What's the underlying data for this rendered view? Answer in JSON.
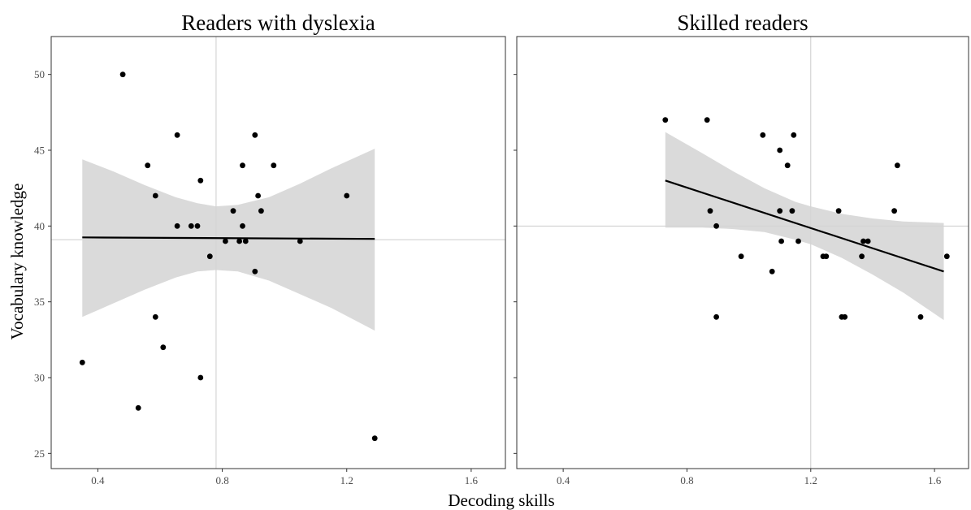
{
  "chart_data": {
    "type": "scatter",
    "xlabel": "Decoding skills",
    "ylabel": "Vocabulary knowledge",
    "xlim": [
      0.25,
      1.71
    ],
    "ylim": [
      24,
      52.5
    ],
    "xticks": [
      "0.4",
      "0.8",
      "1.2",
      "1.6"
    ],
    "yticks": [
      "25",
      "30",
      "35",
      "40",
      "45",
      "50"
    ],
    "grid": false,
    "legend": "none",
    "colors": {
      "points": "#000000",
      "ribbon": "#d3d3d3",
      "line": "#000000",
      "ref_line": "#cccccc",
      "frame": "#333333"
    },
    "panels": [
      {
        "title": "Readers with dyslexia",
        "ref_x": 0.78,
        "ref_y": 39.1,
        "fit": {
          "x": [
            0.35,
            1.29
          ],
          "y": [
            39.25,
            39.15
          ]
        },
        "ribbon": {
          "x": [
            0.35,
            0.45,
            0.55,
            0.65,
            0.72,
            0.78,
            0.85,
            0.95,
            1.05,
            1.15,
            1.29
          ],
          "upper": [
            44.4,
            43.6,
            42.7,
            41.9,
            41.5,
            41.3,
            41.4,
            41.9,
            42.8,
            43.8,
            45.1
          ],
          "lower": [
            34.0,
            34.9,
            35.8,
            36.6,
            37.0,
            37.1,
            37.0,
            36.4,
            35.5,
            34.6,
            33.1
          ]
        },
        "points": [
          {
            "x": 0.35,
            "y": 31
          },
          {
            "x": 0.48,
            "y": 50
          },
          {
            "x": 0.53,
            "y": 28
          },
          {
            "x": 0.56,
            "y": 44
          },
          {
            "x": 0.585,
            "y": 42
          },
          {
            "x": 0.585,
            "y": 34
          },
          {
            "x": 0.61,
            "y": 32
          },
          {
            "x": 0.655,
            "y": 46
          },
          {
            "x": 0.655,
            "y": 40
          },
          {
            "x": 0.7,
            "y": 40
          },
          {
            "x": 0.72,
            "y": 40
          },
          {
            "x": 0.73,
            "y": 43
          },
          {
            "x": 0.73,
            "y": 30
          },
          {
            "x": 0.76,
            "y": 38
          },
          {
            "x": 0.81,
            "y": 39
          },
          {
            "x": 0.835,
            "y": 41
          },
          {
            "x": 0.855,
            "y": 39
          },
          {
            "x": 0.865,
            "y": 44
          },
          {
            "x": 0.865,
            "y": 40
          },
          {
            "x": 0.875,
            "y": 39
          },
          {
            "x": 0.905,
            "y": 46
          },
          {
            "x": 0.905,
            "y": 37
          },
          {
            "x": 0.915,
            "y": 42
          },
          {
            "x": 0.925,
            "y": 41
          },
          {
            "x": 0.965,
            "y": 44
          },
          {
            "x": 1.05,
            "y": 39
          },
          {
            "x": 1.2,
            "y": 42
          },
          {
            "x": 1.29,
            "y": 26
          }
        ]
      },
      {
        "title": "Skilled readers",
        "ref_x": 1.2,
        "ref_y": 40.0,
        "fit": {
          "x": [
            0.73,
            1.63
          ],
          "y": [
            43.0,
            37.0
          ]
        },
        "ribbon": {
          "x": [
            0.73,
            0.85,
            0.95,
            1.05,
            1.15,
            1.2,
            1.3,
            1.4,
            1.5,
            1.63
          ],
          "upper": [
            46.2,
            44.8,
            43.6,
            42.5,
            41.6,
            41.3,
            40.8,
            40.5,
            40.3,
            40.2
          ],
          "lower": [
            39.9,
            39.9,
            39.8,
            39.6,
            39.1,
            38.8,
            37.9,
            36.8,
            35.6,
            33.8
          ]
        },
        "points": [
          {
            "x": 0.73,
            "y": 47
          },
          {
            "x": 0.865,
            "y": 47
          },
          {
            "x": 0.875,
            "y": 41
          },
          {
            "x": 0.895,
            "y": 40
          },
          {
            "x": 0.895,
            "y": 34
          },
          {
            "x": 0.975,
            "y": 38
          },
          {
            "x": 1.045,
            "y": 46
          },
          {
            "x": 1.075,
            "y": 37
          },
          {
            "x": 1.1,
            "y": 45
          },
          {
            "x": 1.1,
            "y": 41
          },
          {
            "x": 1.105,
            "y": 39
          },
          {
            "x": 1.125,
            "y": 44
          },
          {
            "x": 1.14,
            "y": 41
          },
          {
            "x": 1.145,
            "y": 46
          },
          {
            "x": 1.16,
            "y": 39
          },
          {
            "x": 1.24,
            "y": 38
          },
          {
            "x": 1.25,
            "y": 38
          },
          {
            "x": 1.29,
            "y": 41
          },
          {
            "x": 1.3,
            "y": 34
          },
          {
            "x": 1.31,
            "y": 34
          },
          {
            "x": 1.365,
            "y": 38
          },
          {
            "x": 1.37,
            "y": 39
          },
          {
            "x": 1.385,
            "y": 39
          },
          {
            "x": 1.47,
            "y": 41
          },
          {
            "x": 1.48,
            "y": 44
          },
          {
            "x": 1.555,
            "y": 34
          },
          {
            "x": 1.64,
            "y": 38
          }
        ]
      }
    ]
  }
}
